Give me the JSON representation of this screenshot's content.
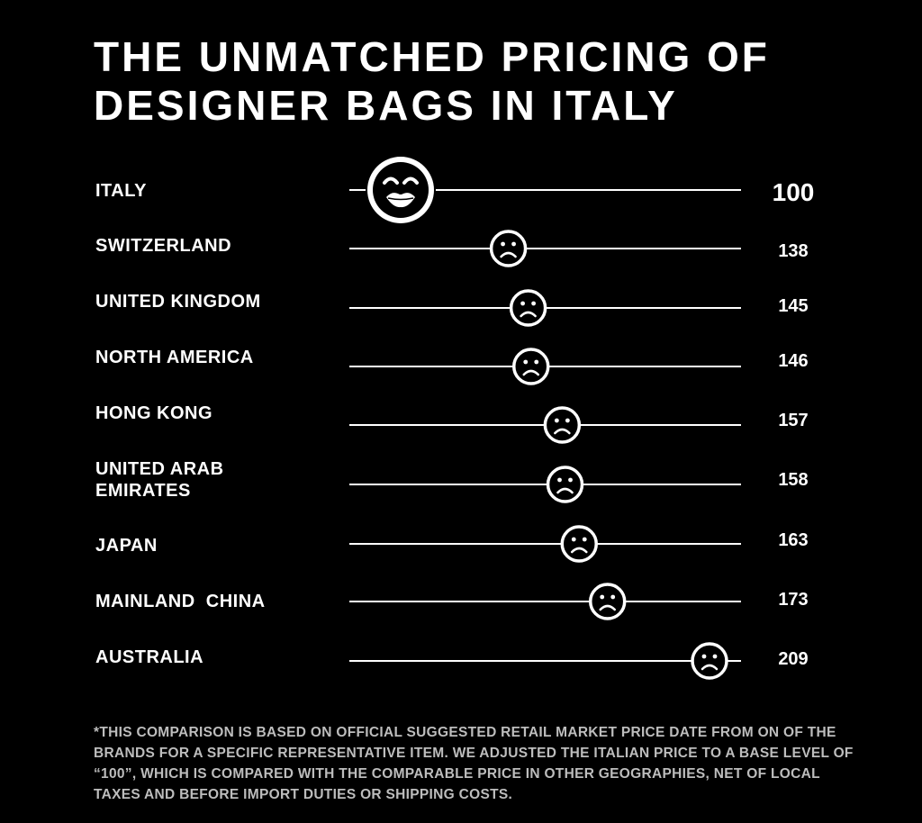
{
  "title": {
    "line1": "THE UNMATCHED PRICING OF",
    "line2": "DESIGNER BAGS IN ITALY"
  },
  "chart_data": {
    "type": "scatter",
    "title": "THE UNMATCHED PRICING OF DESIGNER BAGS IN ITALY",
    "categories": [
      "ITALY",
      "SWITZERLAND",
      "UNITED KINGDOM",
      "NORTH AMERICA",
      "HONG KONG",
      "UNITED ARAB EMIRATES",
      "JAPAN",
      "MAINLAND  CHINA",
      "AUSTRALIA"
    ],
    "values": [
      100,
      138,
      145,
      146,
      157,
      158,
      163,
      173,
      209
    ],
    "value_labels": [
      "100",
      "138",
      "145",
      "146",
      "157",
      "158",
      "163",
      "173",
      "209"
    ],
    "xlim": [
      90,
      215
    ],
    "marker_icons": [
      "kiss-face-icon",
      "sad-face-icon",
      "sad-face-icon",
      "sad-face-icon",
      "sad-face-icon",
      "sad-face-icon",
      "sad-face-icon",
      "sad-face-icon",
      "sad-face-icon"
    ],
    "grid": false
  },
  "labels": {
    "italy": "ITALY",
    "switzerland": "SWITZERLAND",
    "united_kingdom": "UNITED KINGDOM",
    "north_america": "NORTH AMERICA",
    "hong_kong": "HONG KONG",
    "uae_line1": "UNITED ARAB",
    "uae_line2": "EMIRATES",
    "japan": "JAPAN",
    "mainland_china": "MAINLAND  CHINA",
    "australia": "AUSTRALIA"
  },
  "footnote": "*THIS COMPARISON IS BASED ON OFFICIAL SUGGESTED RETAIL MARKET PRICE DATE FROM ON OF THE BRANDS FOR A SPECIFIC REPRESENTATIVE ITEM. WE ADJUSTED THE ITALIAN PRICE TO A BASE  LEVEL OF “100”, WHICH IS COMPARED WITH THE COMPARABLE PRICE IN OTHER GEOGRAPHIES, NET OF LOCAL TAXES AND BEFORE IMPORT DUTIES OR SHIPPING COSTS.",
  "colors": {
    "background": "#000000",
    "foreground": "#ffffff",
    "footnote": "#bdbdbd"
  }
}
